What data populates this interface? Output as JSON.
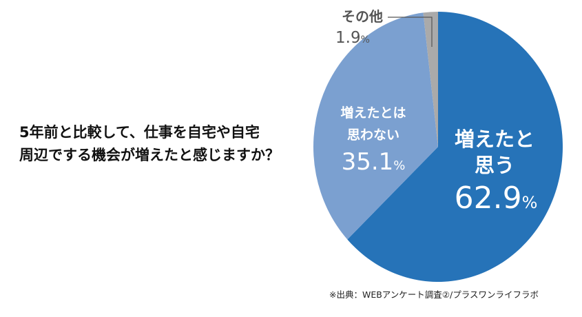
{
  "question": {
    "line1": "5年前と比較して、仕事を自宅や自宅",
    "line2": "周辺でする機会が増えたと感じますか？"
  },
  "chart_data": {
    "type": "pie",
    "title": "5年前と比較して、仕事を自宅や自宅周辺でする機会が増えたと感じますか？",
    "slices": [
      {
        "label_line1": "増えたと",
        "label_line2": "思う",
        "value": 62.9,
        "value_text": "62.9",
        "color": "#2673b8"
      },
      {
        "label_line1": "増えたとは",
        "label_line2": "思わない",
        "value": 35.1,
        "value_text": "35.1",
        "color": "#7ba0d0"
      },
      {
        "label_line1": "その他",
        "label_line2": "",
        "value": 1.9,
        "value_text": "1.9",
        "color": "#aaaaaa"
      }
    ],
    "unit": "%",
    "start": "top, clockwise"
  },
  "source": "※出典：WEBアンケート調査②/プラスワンライフラボ"
}
